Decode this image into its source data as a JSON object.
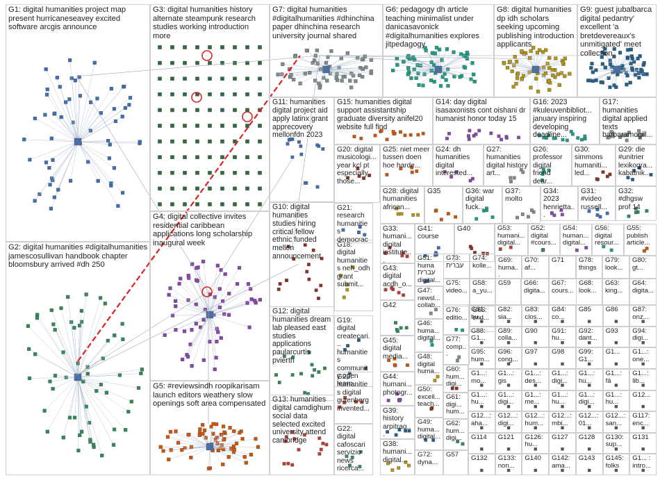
{
  "graph_title": "",
  "groups": [
    {
      "id": "G1",
      "label": "G1: digital humanities project map present hurricaneseavey excited software arcgis announce"
    },
    {
      "id": "G2",
      "label": "G2: digital humanities #digitalhumanities jamescosullivan handbook chapter bloomsbury arrived #dh 250"
    },
    {
      "id": "G3",
      "label": "G3: digital humanities history alternate steampunk research studies working introduction more"
    },
    {
      "id": "G4",
      "label": "G4: digital collective invites residential caribbean applications long scholarship inaugural week"
    },
    {
      "id": "G5",
      "label": "G5: #reviewsindh roopikarisam launch editors weathery slow openings soft area compensated"
    },
    {
      "id": "G6",
      "label": "G6: pedagogy dh article teaching minimalist under danicasavonick #digitalhumanities explores jitpedagogy"
    },
    {
      "id": "G7",
      "label": "G7: digital humanities #digitalhumanities #dhinchina paper dhinchina research university journal shared"
    },
    {
      "id": "G8",
      "label": "G8: digital humanities dp idh scholars seeking upcoming publishing introduction applicants"
    },
    {
      "id": "G9",
      "label": "G9: guest jubalbarca digital pedantry' excellent 'a bretdevereaux's unmitigated' meet collection"
    },
    {
      "id": "G10",
      "label": "G10: digital humanities studies hiring critical fellow ethnic funded mellon announcement"
    },
    {
      "id": "G11",
      "label": "G11: humanities digital project aid apply latinx grant apprecovery mellonfdn 2023"
    },
    {
      "id": "G12",
      "label": "G12: digital humanities dream lab pleased east studies applications paularcurtis pvierth"
    },
    {
      "id": "G13",
      "label": "G13: humanities digital camdighum social data selected excited university attend cambridge"
    },
    {
      "id": "G14",
      "label": "G14: day digital isasaxonists cont oishani dr humanist honor today 15"
    },
    {
      "id": "G15",
      "label": "G15: humanities digital support assistantship graduate diversity anifel20 website full find"
    },
    {
      "id": "G16",
      "label": "G16: 2023 #kuleuvenbibliot... january inspiring developing deadline..."
    },
    {
      "id": "G17",
      "label": "G17: humanities digital applied texts barbaramcgill..."
    },
    {
      "id": "G18",
      "label": "G18: digital humanities neh_odh grant submit..."
    },
    {
      "id": "G19",
      "label": "G19: digital createcari... humanities community open learn..."
    },
    {
      "id": "G20",
      "label": "G20: digital musicologi... year kcl pt especially those..."
    },
    {
      "id": "G21",
      "label": "G21: research humanities democracy based..."
    },
    {
      "id": "G22",
      "label": "G22: digital cafoscari servizio news ricerca..."
    },
    {
      "id": "G23",
      "label": "G23: humanities digital gutenberg invented..."
    },
    {
      "id": "G24",
      "label": "G24: dh humanities digital interested..."
    },
    {
      "id": "G25",
      "label": "G25: niet meer tussen doen hoe harde..."
    },
    {
      "id": "G26",
      "label": "G26: professor digital friend dear..."
    },
    {
      "id": "G27",
      "label": "G27: humanities digital history art..."
    },
    {
      "id": "G28",
      "label": "G28: digital humanities african..."
    },
    {
      "id": "G29",
      "label": "G29: die #unitrier lexikogra... kabatnik..."
    },
    {
      "id": "G30",
      "label": "G30: simmons humaniti... led..."
    },
    {
      "id": "G31",
      "label": "G31: #video russell..."
    },
    {
      "id": "G32",
      "label": "G32: #dhgsw prof 14"
    },
    {
      "id": "G33",
      "label": "G33: humani... digital institute..."
    },
    {
      "id": "G34",
      "label": "G34: 2023 henrietta..."
    },
    {
      "id": "G35",
      "label": "G35"
    },
    {
      "id": "G36",
      "label": "G36: war digital fuck..."
    },
    {
      "id": "G37",
      "label": "G37: molto"
    },
    {
      "id": "G38",
      "label": "G38: humani... digital..."
    },
    {
      "id": "G39",
      "label": "G39: history arpitrag..."
    },
    {
      "id": "G40",
      "label": "G40"
    },
    {
      "id": "G41",
      "label": "G41: course"
    },
    {
      "id": "G42",
      "label": "G42"
    },
    {
      "id": "G43",
      "label": "G43: digital acdh_o..."
    },
    {
      "id": "G44",
      "label": "G44: humani... photogr..."
    },
    {
      "id": "G45",
      "label": "G45: digital media..."
    },
    {
      "id": "G46",
      "label": "G46: huma... digital..."
    },
    {
      "id": "G47",
      "label": "G47: newsl... collab..."
    },
    {
      "id": "G48",
      "label": "G48: digital huma..."
    },
    {
      "id": "G49",
      "label": "G49: huma... digital..."
    },
    {
      "id": "G50",
      "label": "G50: excell... teach..."
    },
    {
      "id": "G51",
      "label": "G51: huma עברית digital..."
    },
    {
      "id": "G52",
      "label": "G52: digital #cours..."
    },
    {
      "id": "G53",
      "label": "G53: humani... digital..."
    },
    {
      "id": "G54",
      "label": "G54: human... digital..."
    },
    {
      "id": "G55",
      "label": "G55: publish article..."
    },
    {
      "id": "G56",
      "label": "G56: digital resour..."
    },
    {
      "id": "G57",
      "label": "G57"
    },
    {
      "id": "G58",
      "label": "G58: a_yu..."
    },
    {
      "id": "G59",
      "label": "G59"
    },
    {
      "id": "G60",
      "label": "G60: hum... digi..."
    },
    {
      "id": "G61",
      "label": "G61: digi... hum..."
    },
    {
      "id": "G62",
      "label": "G62: hum... digi..."
    },
    {
      "id": "G63",
      "label": "G63: king..."
    },
    {
      "id": "G64",
      "label": "G64: digita..."
    },
    {
      "id": "G65",
      "label": "G65: end..."
    },
    {
      "id": "G66",
      "label": "G66: digita..."
    },
    {
      "id": "G67",
      "label": "G67: cours..."
    },
    {
      "id": "G68",
      "label": "G68: look..."
    },
    {
      "id": "G69",
      "label": "G69: huma..."
    },
    {
      "id": "G70",
      "label": "G70: af..."
    },
    {
      "id": "G71",
      "label": "G71"
    },
    {
      "id": "G72",
      "label": "G72: dyna..."
    },
    {
      "id": "G73",
      "label": "G73: עברית"
    },
    {
      "id": "G74",
      "label": "G74: kolle..."
    },
    {
      "id": "G75",
      "label": "G75: video..."
    },
    {
      "id": "G76",
      "label": "G76: editio..."
    },
    {
      "id": "G77",
      "label": "G77: comp..."
    },
    {
      "id": "G78",
      "label": "G78: things"
    },
    {
      "id": "G79",
      "label": "G79: look..."
    },
    {
      "id": "G80",
      "label": "G80: gt..."
    }
  ],
  "tail_groups": [
    "G81: hu...",
    "G82: sia...",
    "G83: clos...",
    "G84: co...",
    "G85",
    "G86",
    "G87: onz...",
    "G88: G1...",
    "G89: colla...",
    "G90",
    "G91: hu...",
    "G92: dant...",
    "G93",
    "G94: digi...",
    "G95: hum...",
    "G96: cong...",
    "G97",
    "G98",
    "G99: G1...",
    "G1...",
    "G1...: one...",
    "G1...: mo...",
    "G1...: gis",
    "G1...: des...",
    "G1...: digi...",
    "G1...: hu...",
    "G1...: fä",
    "G1...: lib...",
    "G1...: hu...",
    "G1...: digi...",
    "G1...: me...",
    "G1...: hu...",
    "G1...: digi...",
    "G1...: hu...",
    "G12...",
    "G12...: aha...",
    "G12...: digi...",
    "G12...: hum...",
    "G12...: mbi...",
    "G12...: 01...",
    "G12...: san...",
    "G117: enc...",
    "G114",
    "G121",
    "G126: hu...",
    "G127",
    "G128",
    "G130: sup...",
    "G131",
    "G132",
    "G133: non...",
    "G140",
    "G142: ama...",
    "G143",
    "G145: folks",
    "G1... : intro..."
  ]
}
